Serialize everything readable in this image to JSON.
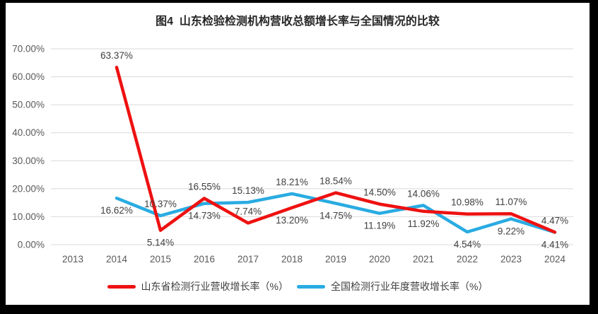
{
  "title": "图4  山东检验检测机构营收总额增长率与全国情况的比较",
  "frame": {
    "border_color": "#000000",
    "page_color": "#ffffff"
  },
  "chart_data": {
    "type": "line",
    "categories": [
      "2013",
      "2014",
      "2015",
      "2016",
      "2017",
      "2018",
      "2019",
      "2020",
      "2021",
      "2022",
      "2023",
      "2024"
    ],
    "series": [
      {
        "name": "山东省检测行业营收增长率（%）",
        "color": "#ee1111",
        "values": [
          null,
          63.37,
          5.14,
          16.55,
          7.74,
          13.2,
          18.54,
          14.5,
          11.92,
          10.98,
          11.07,
          4.47
        ],
        "label_positions": [
          null,
          "above",
          "below",
          "above",
          "above",
          "below",
          "above",
          "above",
          "below",
          "above",
          "above",
          "above"
        ]
      },
      {
        "name": "全国检测行业年度营收增长率（%）",
        "color": "#29abe2",
        "values": [
          null,
          16.62,
          10.37,
          14.73,
          15.13,
          18.21,
          14.75,
          11.19,
          14.06,
          4.54,
          9.22,
          4.41
        ],
        "label_positions": [
          null,
          "below",
          "above",
          "below",
          "above",
          "above",
          "below",
          "below",
          "above",
          "below",
          "below",
          "below"
        ]
      }
    ],
    "y_axis": {
      "ticks": [
        "0.00%",
        "10.00%",
        "20.00%",
        "30.00%",
        "40.00%",
        "50.00%",
        "60.00%",
        "70.00%"
      ],
      "min": 0,
      "max": 70,
      "step": 10
    },
    "grid": true,
    "legend_position": "bottom",
    "data_label_format": "0.00%",
    "colors": {
      "grid": "#d9d9d9",
      "axis_text": "#595959",
      "data_label_text": "#3f3f3f",
      "title_text": "#262626"
    }
  }
}
